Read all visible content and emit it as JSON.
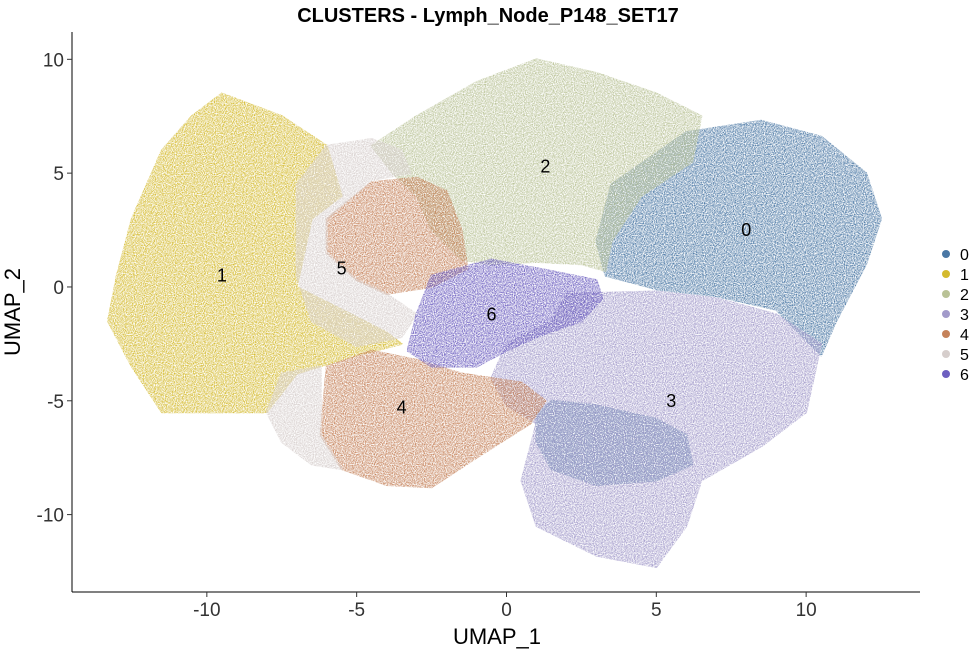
{
  "chart_data": {
    "type": "scatter",
    "title": "CLUSTERS - Lymph_Node_P148_SET17",
    "xlabel": "UMAP_1",
    "ylabel": "UMAP_2",
    "xlim": [
      -14.5,
      13.8
    ],
    "ylim": [
      -13.4,
      11.2
    ],
    "x_ticks": [
      -10,
      -5,
      0,
      5,
      10
    ],
    "x_tick_labels": [
      "-10",
      "-5",
      "0",
      "5",
      "10"
    ],
    "y_ticks": [
      -10,
      -5,
      0,
      5,
      10
    ],
    "y_tick_labels": [
      "-10",
      "-5",
      "0",
      "5",
      "10"
    ],
    "grid": false,
    "legend_position": "right",
    "series": [
      {
        "name": "0",
        "color": "#4A77A4",
        "label_at": [
          8,
          2.5
        ],
        "regions": [
          {
            "outline": [
              [
                3,
                2
              ],
              [
                3.5,
                4.5
              ],
              [
                6,
                6.8
              ],
              [
                8.5,
                7.3
              ],
              [
                10.5,
                6.6
              ],
              [
                12,
                5
              ],
              [
                12.5,
                3
              ],
              [
                12,
                1
              ],
              [
                11,
                -1.5
              ],
              [
                10.5,
                -3
              ],
              [
                9,
                -1
              ],
              [
                7,
                -0.4
              ],
              [
                5,
                -0.1
              ],
              [
                3.3,
                0.5
              ]
            ]
          },
          {
            "outline": [
              [
                1,
                -5.6
              ],
              [
                1.5,
                -5
              ],
              [
                3,
                -5.2
              ],
              [
                5,
                -5.8
              ],
              [
                6,
                -6.5
              ],
              [
                6.2,
                -7.8
              ],
              [
                5,
                -8.5
              ],
              [
                3,
                -8.7
              ],
              [
                1.5,
                -8
              ],
              [
                1,
                -6.8
              ]
            ]
          }
        ]
      },
      {
        "name": "1",
        "color": "#D4BA2E",
        "label_at": [
          -9.5,
          0.5
        ],
        "regions": [
          {
            "outline": [
              [
                -9.5,
                8.5
              ],
              [
                -7.5,
                7.5
              ],
              [
                -6,
                6.2
              ],
              [
                -5.5,
                4
              ],
              [
                -6.5,
                3
              ],
              [
                -7,
                0
              ],
              [
                -5.5,
                -1
              ],
              [
                -4,
                -2
              ],
              [
                -3.5,
                -2.5
              ],
              [
                -5,
                -3
              ],
              [
                -7,
                -3.8
              ],
              [
                -8,
                -5.5
              ],
              [
                -11.5,
                -5.5
              ],
              [
                -12.5,
                -3.5
              ],
              [
                -13.3,
                -1.5
              ],
              [
                -13,
                0.5
              ],
              [
                -12.5,
                3
              ],
              [
                -11.5,
                6
              ],
              [
                -10.5,
                7.5
              ]
            ]
          }
        ]
      },
      {
        "name": "2",
        "color": "#B9C296",
        "label_at": [
          1.3,
          5.3
        ],
        "regions": [
          {
            "outline": [
              [
                -4.5,
                6.2
              ],
              [
                -3,
                7.5
              ],
              [
                -1,
                9
              ],
              [
                1,
                10
              ],
              [
                3,
                9.4
              ],
              [
                5,
                8.5
              ],
              [
                6.5,
                7.5
              ],
              [
                6.2,
                5.5
              ],
              [
                4.5,
                4
              ],
              [
                3.5,
                2
              ],
              [
                3.3,
                0.7
              ],
              [
                2.5,
                1
              ],
              [
                1,
                1.1
              ],
              [
                -0.5,
                1
              ],
              [
                -1.5,
                1.2
              ],
              [
                -2.5,
                2.5
              ],
              [
                -3,
                4
              ],
              [
                -3.8,
                5
              ]
            ]
          }
        ]
      },
      {
        "name": "3",
        "color": "#A29ACA",
        "label_at": [
          5.5,
          -5
        ],
        "regions": [
          {
            "outline": [
              [
                2,
                -0.3
              ],
              [
                5,
                -0.2
              ],
              [
                7,
                -0.5
              ],
              [
                9,
                -1.2
              ],
              [
                10.5,
                -2.5
              ],
              [
                10,
                -5.5
              ],
              [
                8.5,
                -7
              ],
              [
                6.5,
                -8.5
              ],
              [
                6,
                -10.5
              ],
              [
                5,
                -12.3
              ],
              [
                3,
                -11.8
              ],
              [
                1,
                -10.5
              ],
              [
                0.5,
                -8.5
              ],
              [
                1,
                -6
              ],
              [
                0,
                -5.2
              ],
              [
                -0.5,
                -4
              ],
              [
                0,
                -2.5
              ],
              [
                1.5,
                -1.5
              ]
            ]
          }
        ]
      },
      {
        "name": "4",
        "color": "#C5825A",
        "label_at": [
          -3.5,
          -5.3
        ],
        "regions": [
          {
            "outline": [
              [
                -6,
                3
              ],
              [
                -4.5,
                4.6
              ],
              [
                -3,
                4.8
              ],
              [
                -2,
                4.2
              ],
              [
                -1.5,
                2.5
              ],
              [
                -1.3,
                0.8
              ],
              [
                -2.5,
                0
              ],
              [
                -4,
                -0.3
              ],
              [
                -5,
                0.3
              ],
              [
                -6,
                1.5
              ]
            ]
          },
          {
            "outline": [
              [
                -6,
                -3.5
              ],
              [
                -4.5,
                -2.8
              ],
              [
                -3,
                -3.2
              ],
              [
                -1.5,
                -3.8
              ],
              [
                0.5,
                -4.2
              ],
              [
                1.3,
                -5
              ],
              [
                0.8,
                -6
              ],
              [
                -1,
                -7.5
              ],
              [
                -2.5,
                -8.8
              ],
              [
                -4,
                -8.7
              ],
              [
                -5.5,
                -8
              ],
              [
                -6.2,
                -6.5
              ]
            ]
          }
        ]
      },
      {
        "name": "5",
        "color": "#D6CECC",
        "label_at": [
          -5.5,
          0.8
        ],
        "regions": [
          {
            "outline": [
              [
                -6,
                6.2
              ],
              [
                -4.5,
                6.5
              ],
              [
                -3.5,
                6
              ],
              [
                -3.2,
                5
              ],
              [
                -4.5,
                4.7
              ],
              [
                -6,
                3
              ],
              [
                -6,
                1.5
              ],
              [
                -5,
                0.3
              ],
              [
                -4,
                -0.3
              ],
              [
                -3,
                -1.2
              ],
              [
                -3.5,
                -2.2
              ],
              [
                -5,
                -2.6
              ],
              [
                -6.5,
                -1.5
              ],
              [
                -7,
                0.5
              ],
              [
                -7,
                2.5
              ],
              [
                -7,
                4.5
              ]
            ]
          },
          {
            "outline": [
              [
                -7.5,
                -3.8
              ],
              [
                -6.2,
                -3.5
              ],
              [
                -6.2,
                -6.5
              ],
              [
                -5.5,
                -8
              ],
              [
                -6.5,
                -7.8
              ],
              [
                -7.5,
                -6.8
              ],
              [
                -8,
                -5.5
              ]
            ]
          }
        ]
      },
      {
        "name": "6",
        "color": "#6D5FC0",
        "label_at": [
          -0.5,
          -1.2
        ],
        "regions": [
          {
            "outline": [
              [
                -2.5,
                0.5
              ],
              [
                -0.5,
                1.2
              ],
              [
                1.5,
                0.7
              ],
              [
                3,
                0.3
              ],
              [
                3.2,
                -0.5
              ],
              [
                2.5,
                -1.5
              ],
              [
                1,
                -2.2
              ],
              [
                0,
                -2.8
              ],
              [
                -1,
                -3.5
              ],
              [
                -2.5,
                -3.5
              ],
              [
                -3.3,
                -2.8
              ],
              [
                -3,
                -1.2
              ]
            ]
          }
        ]
      }
    ]
  }
}
